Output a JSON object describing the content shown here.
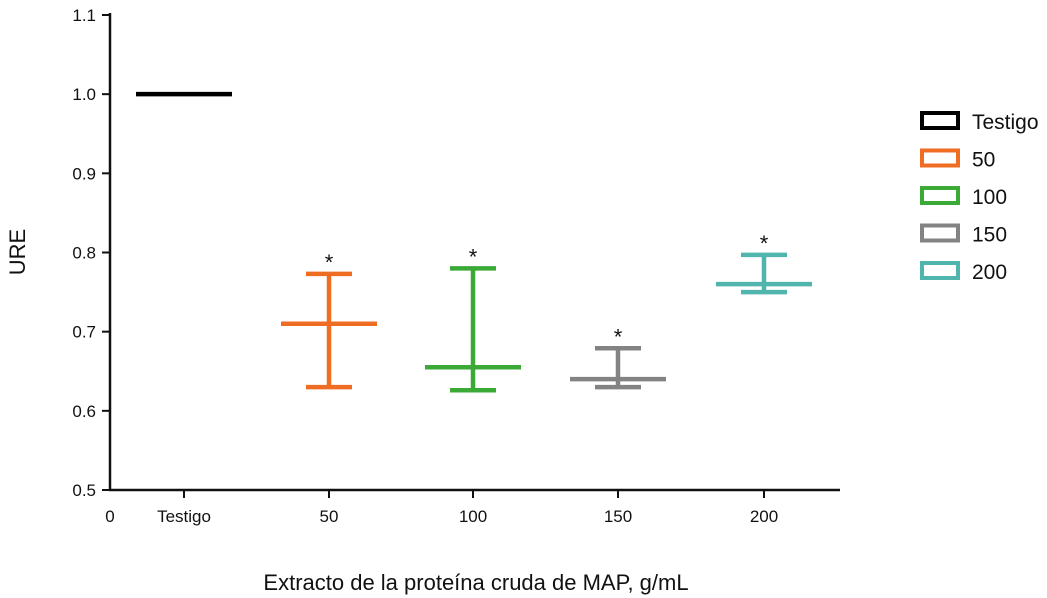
{
  "chart_data": {
    "type": "box",
    "title": "",
    "xlabel": "Extracto de la proteína cruda de MAP, g/mL",
    "ylabel": "URE",
    "ylim": [
      0.5,
      1.1
    ],
    "yticks": [
      "0.5",
      "0.6",
      "0.7",
      "0.8",
      "0.9",
      "1.0",
      "1.1"
    ],
    "xticks": [
      "0",
      "Testigo",
      "50",
      "100",
      "150",
      "200"
    ],
    "series": [
      {
        "name": "Testigo",
        "color": "#000000",
        "mean": 1.0,
        "lower": 1.0,
        "upper": 1.0,
        "significance": ""
      },
      {
        "name": "50",
        "color": "#ef6c23",
        "mean": 0.71,
        "lower": 0.63,
        "upper": 0.773,
        "significance": "*"
      },
      {
        "name": "100",
        "color": "#3aa935",
        "mean": 0.655,
        "lower": 0.626,
        "upper": 0.78,
        "significance": "*"
      },
      {
        "name": "150",
        "color": "#838383",
        "mean": 0.64,
        "lower": 0.63,
        "upper": 0.679,
        "significance": "*"
      },
      {
        "name": "200",
        "color": "#4fb5ad",
        "mean": 0.76,
        "lower": 0.75,
        "upper": 0.797,
        "significance": "*"
      }
    ],
    "legend": {
      "position": "right",
      "entries": [
        "Testigo",
        "50",
        "100",
        "150",
        "200"
      ]
    }
  }
}
